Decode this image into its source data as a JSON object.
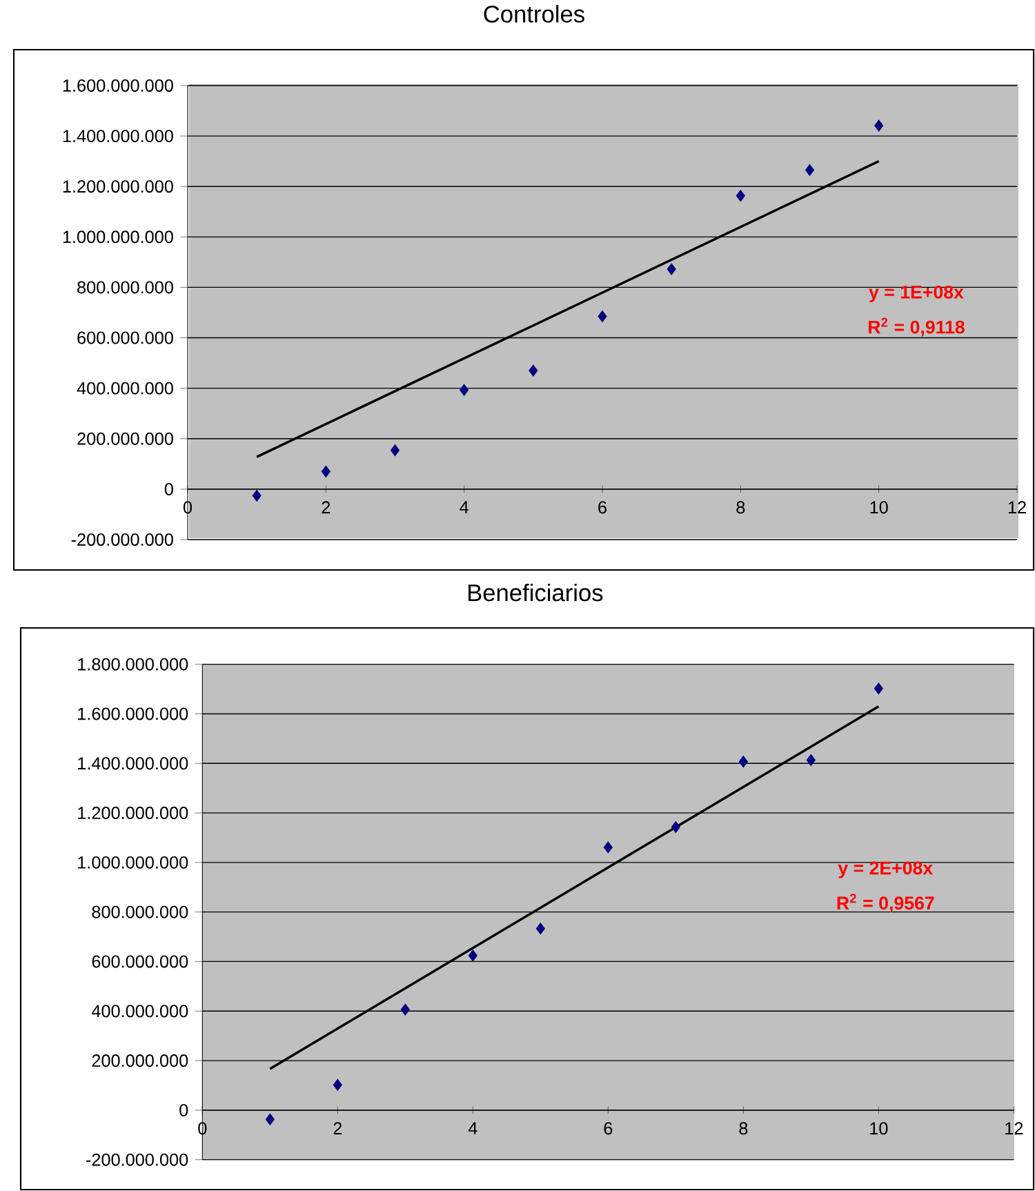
{
  "chart_data": [
    {
      "type": "scatter",
      "title": "Controles",
      "marker": "diamond",
      "grid": "y",
      "xlim": [
        0,
        12
      ],
      "xticks": [
        0,
        2,
        4,
        6,
        8,
        10,
        12
      ],
      "ylim": [
        -200000000,
        1600000000
      ],
      "yticks": [
        {
          "value": -200000000,
          "label": "-200.000.000"
        },
        0,
        {
          "value": 200000000,
          "label": "200.000.000"
        },
        {
          "value": 400000000,
          "label": "400.000.000"
        },
        {
          "value": 600000000,
          "label": "600.000.000"
        },
        {
          "value": 800000000,
          "label": "800.000.000"
        },
        {
          "value": 1000000000,
          "label": "1.000.000.000"
        },
        {
          "value": 1200000000,
          "label": "1.200.000.000"
        },
        {
          "value": 1400000000,
          "label": "1.400.000.000"
        },
        {
          "value": 1600000000,
          "label": "1.600.000.000"
        }
      ],
      "series": [
        {
          "color": "#000080",
          "x": [
            1,
            2,
            3,
            4,
            5,
            6,
            7,
            8,
            9,
            10
          ],
          "values": [
            -26000000,
            70000000,
            154000000,
            393000000,
            470000000,
            685000000,
            872000000,
            1163000000,
            1265000000,
            1441000000
          ]
        },
        {
          "type": "line",
          "marker": "none",
          "color": "#000000",
          "x": [
            1,
            10
          ],
          "values": [
            128000000,
            1300000000
          ]
        }
      ],
      "annotations": [
        "y = 1E+08x",
        "R$^{2}$ = 0,9118"
      ]
    },
    {
      "type": "scatter",
      "title": "Beneficiarios",
      "marker": "diamond",
      "grid": "y",
      "xlim": [
        0,
        12
      ],
      "xticks": [
        0,
        2,
        4,
        6,
        8,
        10,
        12
      ],
      "ylim": [
        -200000000,
        1800000000
      ],
      "yticks": [
        {
          "value": -200000000,
          "label": "-200.000.000"
        },
        0,
        {
          "value": 200000000,
          "label": "200.000.000"
        },
        {
          "value": 400000000,
          "label": "400.000.000"
        },
        {
          "value": 600000000,
          "label": "600.000.000"
        },
        {
          "value": 800000000,
          "label": "800.000.000"
        },
        {
          "value": 1000000000,
          "label": "1.000.000.000"
        },
        {
          "value": 1200000000,
          "label": "1.200.000.000"
        },
        {
          "value": 1400000000,
          "label": "1.400.000.000"
        },
        {
          "value": 1600000000,
          "label": "1.600.000.000"
        },
        {
          "value": 1800000000,
          "label": "1.800.000.000"
        }
      ],
      "series": [
        {
          "color": "#000080",
          "x": [
            1,
            2,
            3,
            4,
            5,
            6,
            7,
            8,
            9,
            10
          ],
          "values": [
            -37000000,
            102000000,
            406000000,
            624000000,
            733000000,
            1061000000,
            1143000000,
            1407000000,
            1413000000,
            1702000000
          ]
        },
        {
          "type": "line",
          "marker": "none",
          "color": "#000000",
          "x": [
            1,
            10
          ],
          "values": [
            167000000,
            1630000000
          ]
        }
      ],
      "annotations": [
        "y = 2E+08x",
        "R$^{2}$ = 0,9567"
      ]
    }
  ]
}
